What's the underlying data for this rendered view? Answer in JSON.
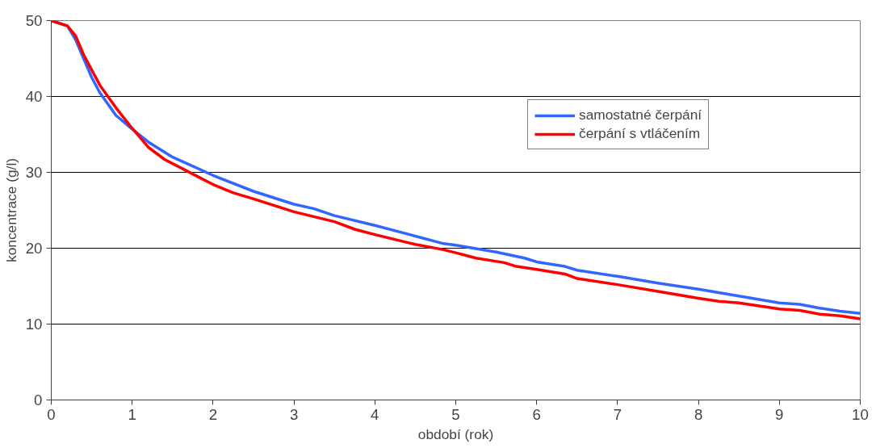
{
  "chart_data": {
    "type": "line",
    "xlabel": "období (rok)",
    "ylabel": "koncentrace (g/l)",
    "xlim": [
      0,
      10
    ],
    "ylim": [
      0,
      50
    ],
    "xticks": [
      0,
      1,
      2,
      3,
      4,
      5,
      6,
      7,
      8,
      9,
      10
    ],
    "yticks": [
      0,
      10,
      20,
      30,
      40,
      50
    ],
    "grid": "y",
    "legend": "top right",
    "marker": "none",
    "line_style": "solid",
    "series": [
      {
        "name": "samostatné čerpání",
        "color": "#3366ff",
        "x": [
          0,
          0.2,
          0.3,
          0.4,
          0.5,
          0.6,
          0.8,
          1,
          1.2,
          1.5,
          2,
          2.5,
          3,
          3.25,
          3.5,
          4,
          4.5,
          4.85,
          5,
          5.5,
          5.85,
          6,
          6.35,
          6.5,
          7,
          7.5,
          8,
          8.5,
          9,
          9.25,
          9.5,
          9.75,
          10
        ],
        "values": [
          50,
          49.3,
          47.5,
          45,
          42.5,
          40.5,
          37.5,
          35.7,
          34,
          32,
          29.6,
          27.5,
          25.8,
          25.2,
          24.3,
          23,
          21.6,
          20.6,
          20.4,
          19.5,
          18.7,
          18.2,
          17.6,
          17.1,
          16.3,
          15.4,
          14.6,
          13.7,
          12.8,
          12.6,
          12.1,
          11.7,
          11.4
        ]
      },
      {
        "name": "čerpání s vtláčením",
        "color": "#ff0000",
        "x": [
          0,
          0.2,
          0.3,
          0.4,
          0.5,
          0.6,
          0.8,
          1,
          1.2,
          1.4,
          1.6,
          2,
          2.25,
          2.5,
          3,
          3.5,
          3.75,
          4,
          4.5,
          4.85,
          5,
          5.25,
          5.6,
          5.75,
          6,
          6.35,
          6.5,
          7,
          7.5,
          8,
          8.25,
          8.5,
          9,
          9.25,
          9.5,
          9.75,
          10
        ],
        "values": [
          50,
          49.3,
          48,
          45.5,
          43.5,
          41.5,
          38.5,
          35.8,
          33.3,
          31.7,
          30.6,
          28.4,
          27.3,
          26.5,
          24.8,
          23.5,
          22.5,
          21.8,
          20.5,
          19.8,
          19.4,
          18.7,
          18.1,
          17.6,
          17.2,
          16.6,
          16,
          15.2,
          14.3,
          13.4,
          13,
          12.8,
          12,
          11.8,
          11.3,
          11.1,
          10.7
        ]
      }
    ]
  }
}
